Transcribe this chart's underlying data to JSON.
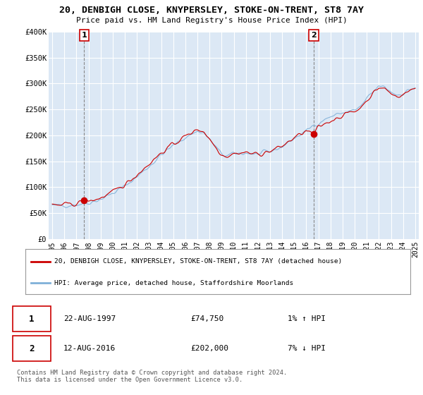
{
  "title": "20, DENBIGH CLOSE, KNYPERSLEY, STOKE-ON-TRENT, ST8 7AY",
  "subtitle": "Price paid vs. HM Land Registry's House Price Index (HPI)",
  "ylim": [
    0,
    400000
  ],
  "yticks": [
    0,
    50000,
    100000,
    150000,
    200000,
    250000,
    300000,
    350000,
    400000
  ],
  "ytick_labels": [
    "£0",
    "£50K",
    "£100K",
    "£150K",
    "£200K",
    "£250K",
    "£300K",
    "£350K",
    "£400K"
  ],
  "xticks": [
    1995,
    1996,
    1997,
    1998,
    1999,
    2000,
    2001,
    2002,
    2003,
    2004,
    2005,
    2006,
    2007,
    2008,
    2009,
    2010,
    2011,
    2012,
    2013,
    2014,
    2015,
    2016,
    2017,
    2018,
    2019,
    2020,
    2021,
    2022,
    2023,
    2024,
    2025
  ],
  "bg_color": "#dce8f5",
  "legend_line1": "20, DENBIGH CLOSE, KNYPERSLEY, STOKE-ON-TRENT, ST8 7AY (detached house)",
  "legend_line2": "HPI: Average price, detached house, Staffordshire Moorlands",
  "red_line_color": "#cc0000",
  "blue_line_color": "#7fb0d8",
  "point1_x": 1997.64,
  "point1_y": 74750,
  "point1_label": "1",
  "point1_date": "22-AUG-1997",
  "point1_price": "£74,750",
  "point1_hpi": "1% ↑ HPI",
  "point2_x": 2016.62,
  "point2_y": 202000,
  "point2_label": "2",
  "point2_date": "12-AUG-2016",
  "point2_price": "£202,000",
  "point2_hpi": "7% ↓ HPI",
  "footer": "Contains HM Land Registry data © Crown copyright and database right 2024.\nThis data is licensed under the Open Government Licence v3.0.",
  "noise_seed": 42,
  "noise_amplitude": 4500
}
